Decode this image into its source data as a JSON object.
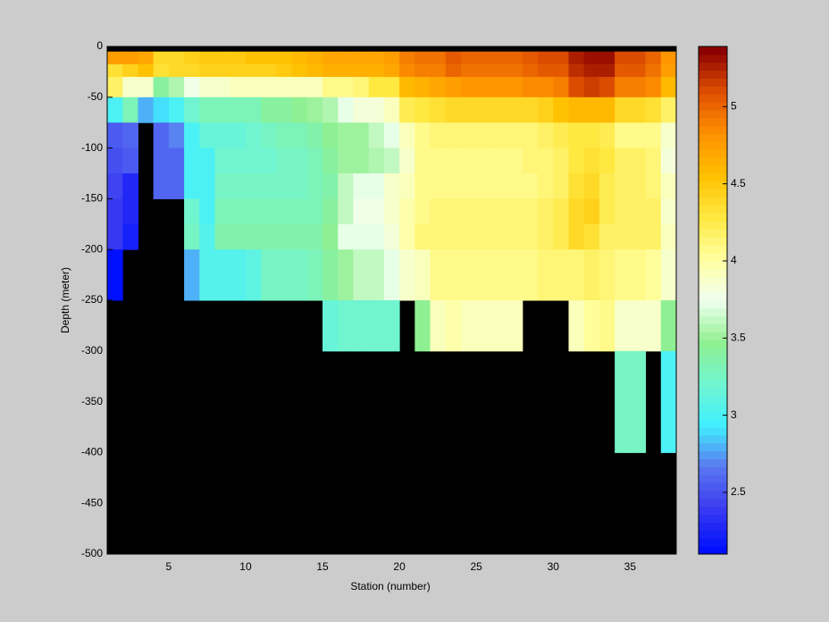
{
  "chart_data": {
    "type": "heatmap",
    "xlabel": "Station (number)",
    "ylabel": "Depth (meter)",
    "x": [
      1,
      2,
      3,
      4,
      5,
      6,
      7,
      8,
      9,
      10,
      11,
      12,
      13,
      14,
      15,
      16,
      17,
      18,
      19,
      20,
      21,
      22,
      23,
      24,
      25,
      26,
      27,
      28,
      29,
      30,
      31,
      32,
      33,
      34,
      35,
      36,
      37,
      38
    ],
    "y": [
      0,
      -5,
      -17.5,
      -30,
      -50,
      -75,
      -100,
      -125,
      -150,
      -175,
      -200,
      -225,
      -250,
      -300,
      -400,
      -500
    ],
    "values": [
      [
        null,
        null,
        null,
        null,
        null,
        null,
        null,
        null,
        null,
        null,
        null,
        null,
        null,
        null,
        null,
        null,
        null,
        null,
        null,
        null,
        null,
        null,
        null,
        null,
        null,
        null,
        null,
        null,
        null,
        null,
        null,
        null,
        null,
        null,
        null,
        null,
        null
      ],
      [
        4.75,
        4.75,
        4.7,
        4.4,
        4.4,
        4.45,
        4.5,
        4.5,
        4.5,
        4.55,
        4.55,
        4.55,
        4.6,
        4.65,
        4.7,
        4.7,
        4.7,
        4.7,
        4.75,
        4.9,
        4.95,
        4.95,
        5.05,
        5.0,
        5.0,
        5.0,
        5.0,
        5.05,
        5.1,
        5.1,
        5.25,
        5.3,
        5.3,
        5.1,
        5.1,
        5.0,
        4.8
      ],
      [
        4.35,
        4.45,
        4.55,
        4.35,
        4.4,
        4.4,
        4.45,
        4.45,
        4.45,
        4.45,
        4.45,
        4.5,
        4.55,
        4.6,
        4.65,
        4.65,
        4.65,
        4.65,
        4.7,
        4.85,
        4.9,
        4.9,
        5.0,
        4.95,
        4.95,
        4.95,
        4.95,
        5.0,
        5.05,
        5.05,
        5.2,
        5.25,
        5.25,
        5.05,
        5.05,
        4.95,
        4.75
      ],
      [
        4.2,
        3.85,
        3.85,
        3.4,
        3.55,
        3.75,
        3.85,
        3.85,
        3.95,
        3.95,
        3.95,
        3.95,
        3.95,
        3.95,
        4.1,
        4.1,
        4.15,
        4.3,
        4.3,
        4.6,
        4.65,
        4.7,
        4.75,
        4.8,
        4.8,
        4.8,
        4.8,
        4.85,
        4.85,
        4.9,
        5.1,
        5.15,
        5.1,
        4.9,
        4.9,
        4.85,
        4.6
      ],
      [
        3.0,
        3.3,
        2.8,
        2.9,
        3.0,
        3.2,
        3.3,
        3.3,
        3.3,
        3.3,
        3.4,
        3.4,
        3.45,
        3.5,
        3.55,
        3.7,
        3.8,
        3.8,
        3.95,
        4.25,
        4.3,
        4.35,
        4.4,
        4.4,
        4.4,
        4.4,
        4.4,
        4.4,
        4.45,
        4.55,
        4.6,
        4.6,
        4.6,
        4.4,
        4.4,
        4.35,
        4.2
      ],
      [
        2.55,
        2.6,
        null,
        2.6,
        2.7,
        3.0,
        3.15,
        3.15,
        3.15,
        3.2,
        3.25,
        3.3,
        3.3,
        3.35,
        3.45,
        3.5,
        3.5,
        3.6,
        3.7,
        3.9,
        4.1,
        4.15,
        4.15,
        4.15,
        4.15,
        4.15,
        4.15,
        4.15,
        4.2,
        4.25,
        4.3,
        4.3,
        4.25,
        4.1,
        4.1,
        4.1,
        3.85
      ],
      [
        2.5,
        2.55,
        null,
        2.6,
        2.6,
        3.0,
        3.0,
        3.2,
        3.2,
        3.2,
        3.2,
        3.25,
        3.25,
        3.3,
        3.4,
        3.5,
        3.5,
        3.55,
        3.6,
        3.85,
        4.1,
        4.1,
        4.1,
        4.1,
        4.1,
        4.1,
        4.1,
        4.15,
        4.15,
        4.2,
        4.3,
        4.35,
        4.3,
        4.2,
        4.2,
        4.15,
        3.8
      ],
      [
        2.45,
        2.3,
        null,
        2.6,
        2.6,
        3.0,
        3.0,
        3.25,
        3.25,
        3.25,
        3.25,
        3.25,
        3.25,
        3.3,
        3.35,
        3.6,
        3.7,
        3.7,
        3.85,
        3.95,
        4.1,
        4.1,
        4.1,
        4.1,
        4.1,
        4.1,
        4.1,
        4.1,
        4.15,
        4.2,
        4.35,
        4.4,
        4.25,
        4.2,
        4.2,
        4.15,
        3.9
      ],
      [
        2.4,
        2.3,
        null,
        null,
        null,
        3.2,
        3.0,
        3.3,
        3.3,
        3.3,
        3.3,
        3.3,
        3.3,
        3.3,
        3.4,
        3.6,
        3.75,
        3.75,
        3.85,
        4.0,
        4.1,
        4.15,
        4.15,
        4.15,
        4.15,
        4.15,
        4.15,
        4.15,
        4.2,
        4.25,
        4.4,
        4.45,
        4.25,
        4.2,
        4.2,
        4.2,
        3.85
      ],
      [
        2.4,
        2.25,
        null,
        null,
        null,
        3.25,
        3.05,
        3.35,
        3.35,
        3.35,
        3.35,
        3.35,
        3.35,
        3.35,
        3.45,
        3.7,
        3.7,
        3.7,
        3.8,
        4.0,
        4.15,
        4.15,
        4.15,
        4.15,
        4.15,
        4.15,
        4.15,
        4.15,
        4.2,
        4.25,
        4.4,
        4.35,
        4.2,
        4.2,
        4.2,
        4.2,
        3.9
      ],
      [
        2.15,
        null,
        null,
        null,
        null,
        2.8,
        3.05,
        3.05,
        3.05,
        3.1,
        3.25,
        3.25,
        3.25,
        3.3,
        3.4,
        3.5,
        3.6,
        3.6,
        3.7,
        3.85,
        3.9,
        4.1,
        4.1,
        4.1,
        4.1,
        4.1,
        4.1,
        4.1,
        4.15,
        4.15,
        4.15,
        4.2,
        4.15,
        4.1,
        4.1,
        4.05,
        3.85
      ],
      [
        2.15,
        null,
        null,
        null,
        null,
        2.8,
        3.05,
        3.05,
        3.05,
        3.1,
        3.25,
        3.25,
        3.25,
        3.3,
        3.4,
        3.5,
        3.6,
        3.6,
        3.7,
        3.85,
        3.9,
        4.1,
        4.1,
        4.1,
        4.1,
        4.1,
        4.1,
        4.1,
        4.15,
        4.15,
        4.15,
        4.2,
        4.15,
        4.1,
        4.1,
        4.05,
        3.85
      ],
      [
        null,
        null,
        null,
        null,
        null,
        null,
        null,
        null,
        null,
        null,
        null,
        null,
        null,
        null,
        3.15,
        3.2,
        3.2,
        3.2,
        3.2,
        null,
        3.45,
        3.95,
        4.0,
        3.9,
        3.9,
        3.9,
        3.9,
        null,
        null,
        null,
        3.95,
        4.05,
        4.1,
        3.85,
        3.85,
        3.85,
        3.45
      ],
      [
        null,
        null,
        null,
        null,
        null,
        null,
        null,
        null,
        null,
        null,
        null,
        null,
        null,
        null,
        null,
        null,
        null,
        null,
        null,
        null,
        null,
        null,
        null,
        null,
        null,
        null,
        null,
        null,
        null,
        null,
        null,
        null,
        null,
        3.25,
        3.25,
        null,
        3.0
      ],
      [
        null,
        null,
        null,
        null,
        null,
        null,
        null,
        null,
        null,
        null,
        null,
        null,
        null,
        null,
        null,
        null,
        null,
        null,
        null,
        null,
        null,
        null,
        null,
        null,
        null,
        null,
        null,
        null,
        null,
        null,
        null,
        null,
        null,
        null,
        null,
        null,
        null
      ]
    ],
    "xlim": [
      1,
      38
    ],
    "xticks": [
      5,
      10,
      15,
      20,
      25,
      30,
      35
    ],
    "ylim": [
      -500,
      0
    ],
    "yticks": [
      0,
      -50,
      -100,
      -150,
      -200,
      -250,
      -300,
      -350,
      -400,
      -450,
      -500
    ],
    "clim": [
      2.1,
      5.39
    ],
    "cticks": [
      2.5,
      3,
      3.5,
      4,
      4.5,
      5
    ],
    "colormap": [
      "#0010ff",
      "#3a3af0",
      "#5a78f0",
      "#40f0ff",
      "#70f5d0",
      "#90f090",
      "#f0fff0",
      "#ffffa0",
      "#ffe840",
      "#ffc000",
      "#ff9000",
      "#e05000",
      "#8b0000"
    ],
    "nan_color": "#000000"
  }
}
